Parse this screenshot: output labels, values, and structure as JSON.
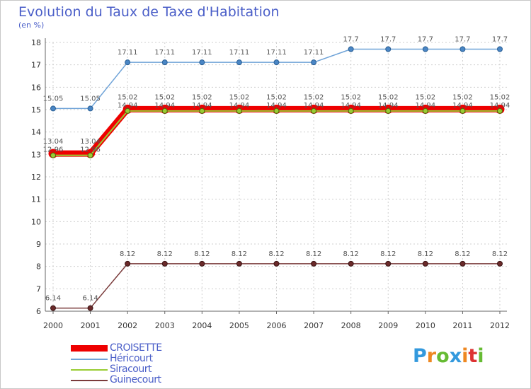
{
  "header": {
    "title": "Evolution du Taux de Taxe d'Habitation",
    "unit": "(en %)"
  },
  "chart_data": {
    "type": "line",
    "title": "Evolution du Taux de Taxe d'Habitation",
    "ylabel": "(en %)",
    "xlabel": "",
    "x": [
      "2000",
      "2001",
      "2002",
      "2003",
      "2004",
      "2005",
      "2006",
      "2007",
      "2008",
      "2009",
      "2010",
      "2011",
      "2012"
    ],
    "ylim": [
      6,
      18
    ],
    "yticks": [
      6,
      7,
      8,
      9,
      10,
      11,
      12,
      13,
      14,
      15,
      16,
      17,
      18
    ],
    "grid": true,
    "legend_position": "bottom-left",
    "series": [
      {
        "name": "CROISETTE",
        "color": "#ee0000",
        "values": [
          13.04,
          13.04,
          15.02,
          15.02,
          15.02,
          15.02,
          15.02,
          15.02,
          15.02,
          15.02,
          15.02,
          15.02,
          15.02
        ],
        "labels": [
          "13.04",
          "13.04",
          "15.02",
          "15.02",
          "15.02",
          "15.02",
          "15.02",
          "15.02",
          "15.02",
          "15.02",
          "15.02",
          "15.02",
          "15.02"
        ]
      },
      {
        "name": "Héricourt",
        "color": "#6fa3d8",
        "values": [
          15.05,
          15.05,
          17.11,
          17.11,
          17.11,
          17.11,
          17.11,
          17.11,
          17.7,
          17.7,
          17.7,
          17.7,
          17.7
        ],
        "labels": [
          "15.05",
          "15.05",
          "17.11",
          "17.11",
          "17.11",
          "17.11",
          "17.11",
          "17.11",
          "17.7",
          "17.7",
          "17.7",
          "17.7",
          "17.7"
        ]
      },
      {
        "name": "Siracourt",
        "color": "#99cc33",
        "values": [
          12.96,
          12.96,
          14.94,
          14.94,
          14.94,
          14.94,
          14.94,
          14.94,
          14.94,
          14.94,
          14.94,
          14.94,
          14.94
        ],
        "labels": [
          "12.96",
          "12.96",
          "14.94",
          "14.94",
          "14.94",
          "14.94",
          "14.94",
          "14.94",
          "14.94",
          "14.94",
          "14.94",
          "14.94",
          "14.94"
        ]
      },
      {
        "name": "Guinecourt",
        "color": "#7a3b3b",
        "values": [
          6.14,
          6.14,
          8.12,
          8.12,
          8.12,
          8.12,
          8.12,
          8.12,
          8.12,
          8.12,
          8.12,
          8.12,
          8.12
        ],
        "labels": [
          "6.14",
          "6.14",
          "8.12",
          "8.12",
          "8.12",
          "8.12",
          "8.12",
          "8.12",
          "8.12",
          "8.12",
          "8.12",
          "8.12",
          "8.12"
        ]
      }
    ]
  },
  "legend": {
    "items": [
      {
        "label": "CROISETTE",
        "color": "#ee0000"
      },
      {
        "label": "Héricourt",
        "color": "#6fa3d8"
      },
      {
        "label": "Siracourt",
        "color": "#99cc33"
      },
      {
        "label": "Guinecourt",
        "color": "#7a3b3b"
      }
    ]
  },
  "logo": {
    "letters": [
      "P",
      "r",
      "o",
      "x",
      "i",
      "t",
      "i"
    ],
    "colors": [
      "#3399dd",
      "#ee8822",
      "#66bb33",
      "#3399dd",
      "#ee8822",
      "#dd3333",
      "#66bb33"
    ]
  }
}
